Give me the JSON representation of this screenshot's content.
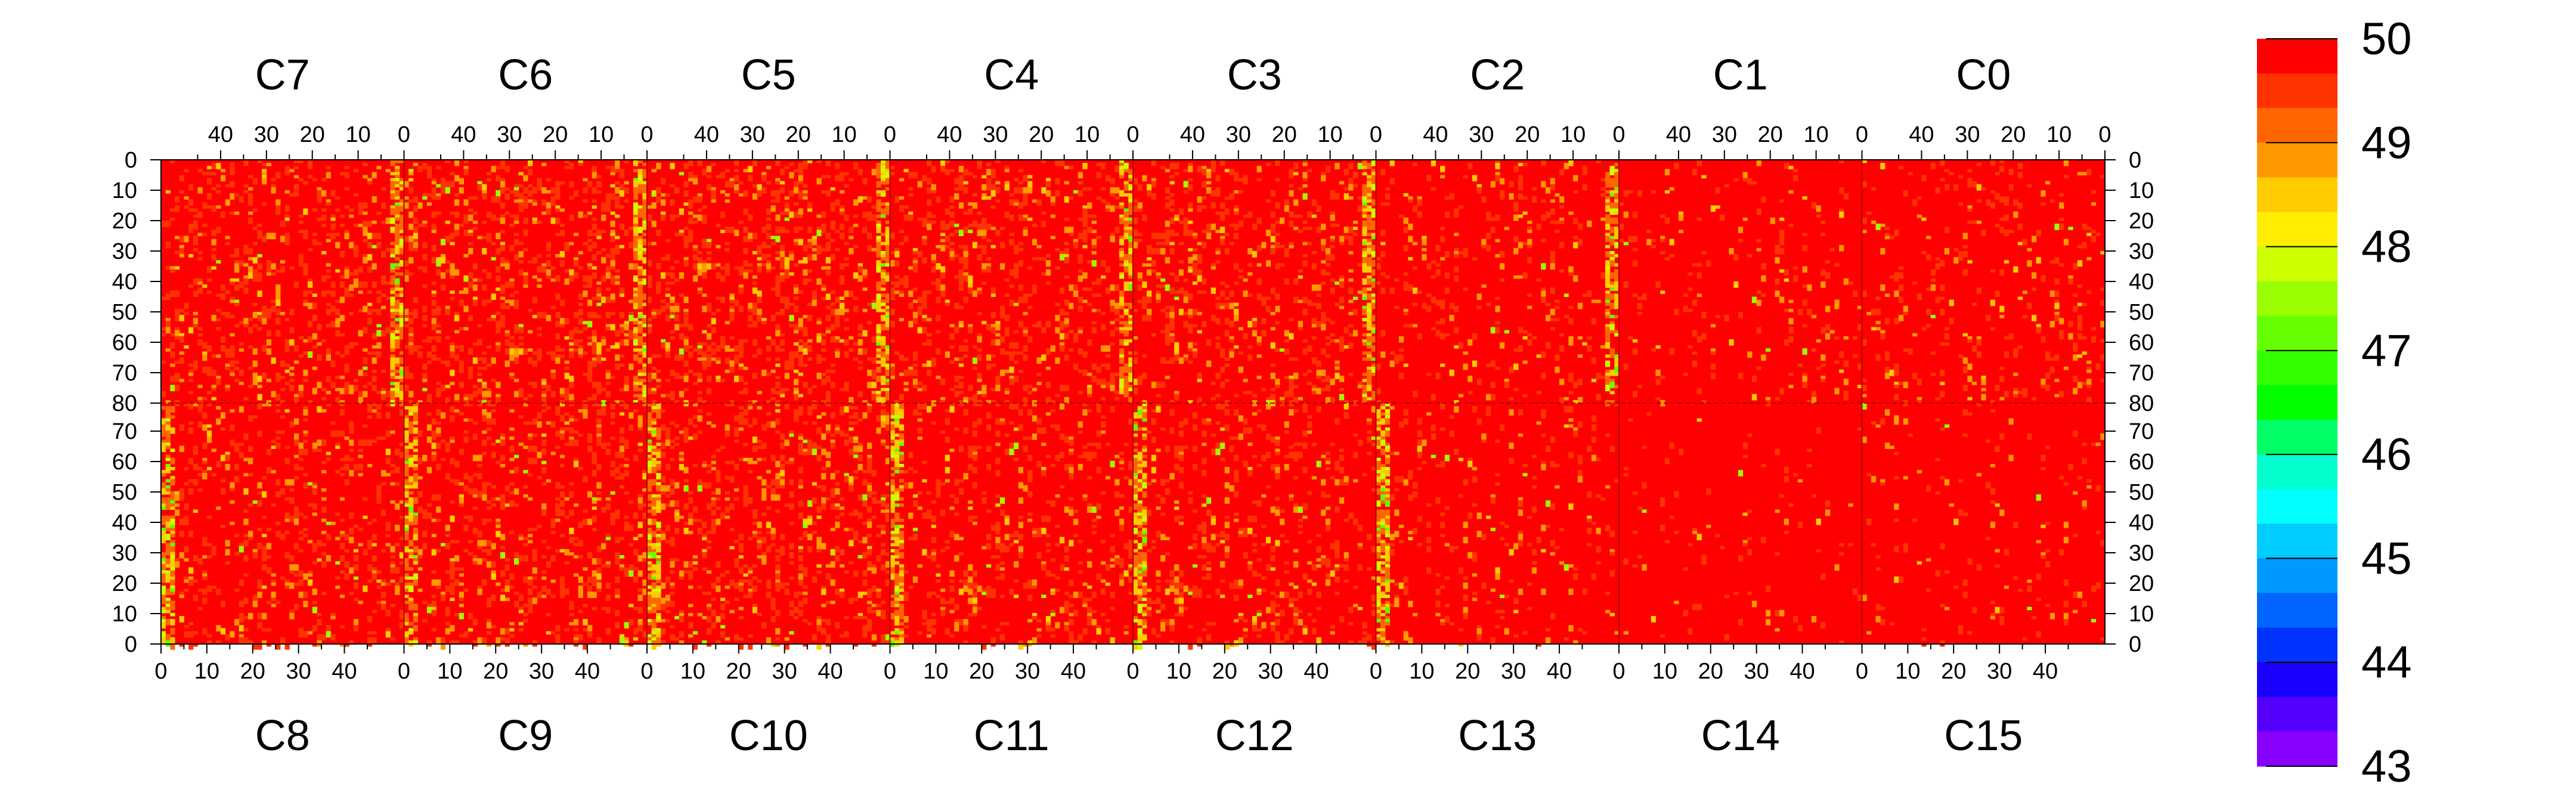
{
  "chart_data": {
    "type": "heatmap",
    "top_chips": [
      "C7",
      "C6",
      "C5",
      "C4",
      "C3",
      "C2",
      "C1",
      "C0"
    ],
    "bottom_chips": [
      "C8",
      "C9",
      "C10",
      "C11",
      "C12",
      "C13",
      "C14",
      "C15"
    ],
    "top_x_ticks": [
      "40",
      "30",
      "20",
      "10",
      "0"
    ],
    "bottom_x_ticks": [
      "0",
      "10",
      "20",
      "30",
      "40"
    ],
    "columns_per_chip": 53,
    "rows_per_half": 80,
    "y_ticks_upper": [
      "0",
      "10",
      "20",
      "30",
      "40",
      "50",
      "60",
      "70",
      "80"
    ],
    "y_ticks_lower": [
      "70",
      "60",
      "50",
      "40",
      "30",
      "20",
      "10",
      "0"
    ],
    "colorbar": {
      "min": 43,
      "max": 50,
      "labels": [
        "50",
        "49",
        "48",
        "47",
        "46",
        "45",
        "44",
        "43"
      ],
      "colors": [
        "#ff0000",
        "#ff3300",
        "#ff6600",
        "#ff9900",
        "#ffcc00",
        "#ffee00",
        "#ccff00",
        "#99ff00",
        "#66ff00",
        "#33ff00",
        "#00ff00",
        "#00ff66",
        "#00ffcc",
        "#00ffff",
        "#00ccff",
        "#0099ff",
        "#0066ff",
        "#0033ff",
        "#1a00ff",
        "#5500ff",
        "#8800ff"
      ]
    },
    "values_summary": {
      "dominant_value": 50,
      "typical_range": [
        46,
        50
      ]
    }
  }
}
